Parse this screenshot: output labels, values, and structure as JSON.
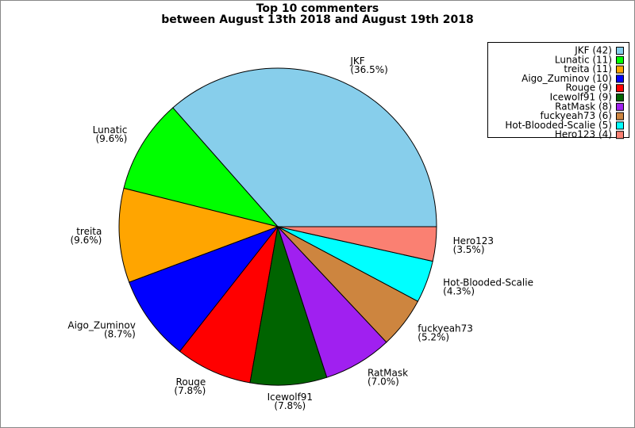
{
  "chart_data": {
    "type": "pie",
    "title": "Top 10 commenters",
    "subtitle": "between August 13th 2018 and August 19th 2018",
    "categories": [
      "JKF",
      "Lunatic",
      "treita",
      "Aigo_Zuminov",
      "Rouge",
      "Icewolf91",
      "RatMask",
      "fuckyeah73",
      "Hot-Blooded-Scalie",
      "Hero123"
    ],
    "values": [
      36.5,
      9.6,
      9.6,
      8.7,
      7.8,
      7.8,
      7.0,
      5.2,
      4.3,
      3.5
    ],
    "value_labels": [
      "(36.5%)",
      "(9.6%)",
      "(9.6%)",
      "(8.7%)",
      "(7.8%)",
      "(7.8%)",
      "(7.0%)",
      "(5.2%)",
      "(4.3%)",
      "(3.5%)"
    ],
    "legend": [
      "JKF (42)",
      "Lunatic (11)",
      "treita (11)",
      "Aigo_Zuminov (10)",
      "Rouge (9)",
      "Icewolf91 (9)",
      "RatMask (8)",
      "fuckyeah73 (6)",
      "Hot-Blooded-Scalie (5)",
      "Hero123 (4)"
    ],
    "colors": [
      "#87ceeb",
      "#00ff00",
      "#ffa500",
      "#0000ff",
      "#ff0000",
      "#006400",
      "#a020f0",
      "#cd853f",
      "#00ffff",
      "#fa8072"
    ],
    "legend_position": "upper right"
  }
}
